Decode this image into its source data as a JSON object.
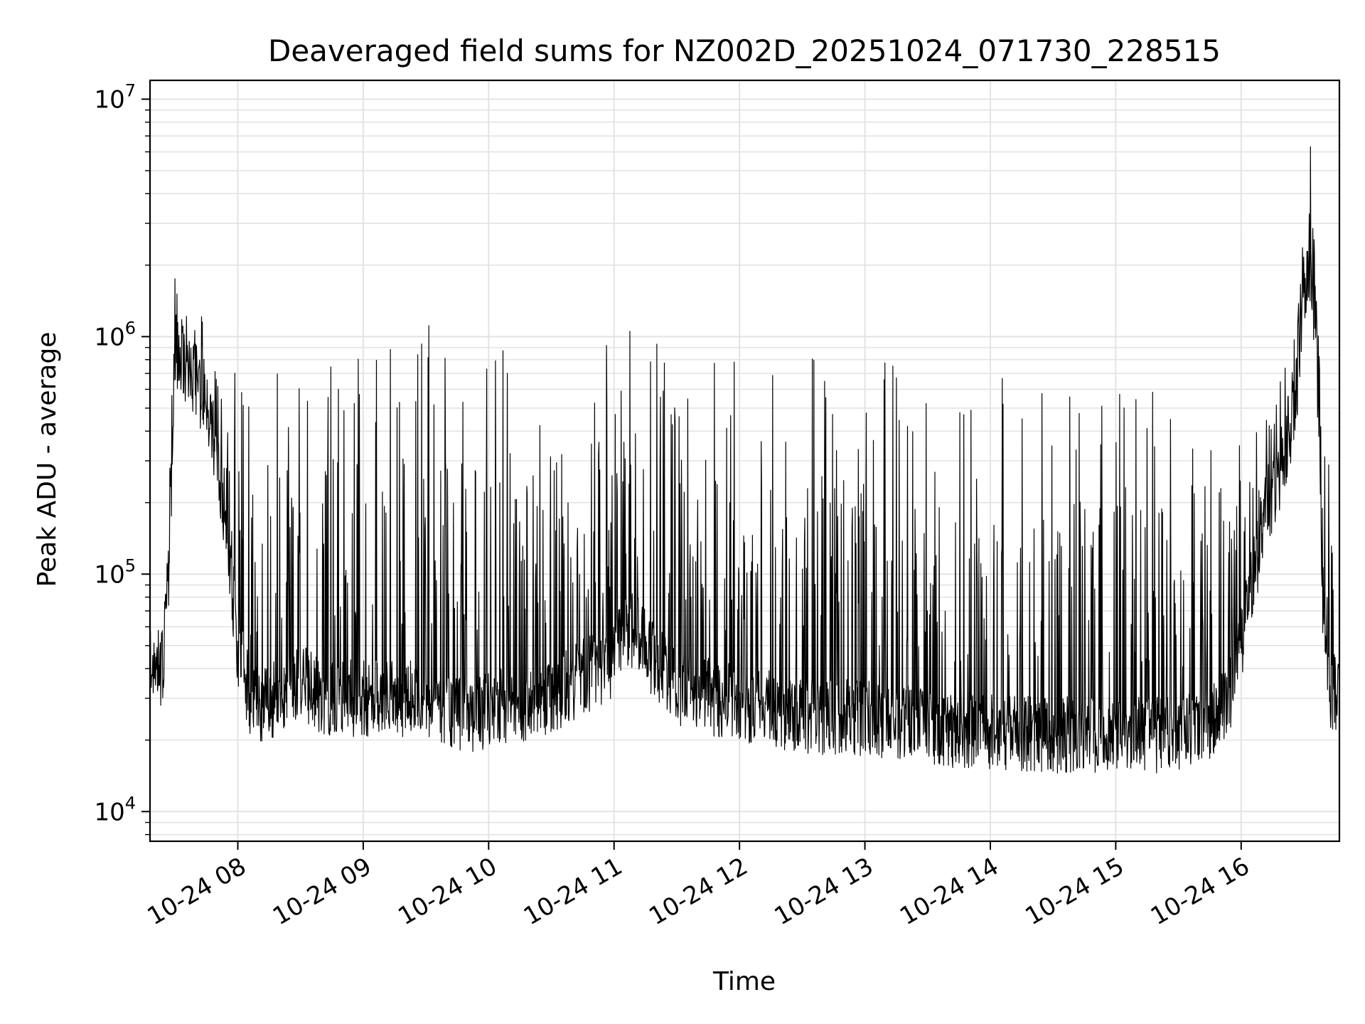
{
  "chart_data": {
    "type": "line",
    "title": "Deaveraged field sums for NZ002D_20251024_071730_228515",
    "xlabel": "Time",
    "ylabel": "Peak ADU - average",
    "yscale": "log",
    "ylim": [
      7500,
      12000000
    ],
    "xlim": [
      "2025-10-24 07:18",
      "2025-10-24 16:47"
    ],
    "grid": true,
    "line_color": "#000000",
    "y_ticks": [
      {
        "base": "10",
        "exp": "4",
        "value": 10000
      },
      {
        "base": "10",
        "exp": "5",
        "value": 100000
      },
      {
        "base": "10",
        "exp": "6",
        "value": 1000000
      },
      {
        "base": "10",
        "exp": "7",
        "value": 10000000
      }
    ],
    "x_ticks": [
      {
        "label": "10-24 08",
        "time": "2025-10-24 08:00"
      },
      {
        "label": "10-24 09",
        "time": "2025-10-24 09:00"
      },
      {
        "label": "10-24 10",
        "time": "2025-10-24 10:00"
      },
      {
        "label": "10-24 11",
        "time": "2025-10-24 11:00"
      },
      {
        "label": "10-24 12",
        "time": "2025-10-24 12:00"
      },
      {
        "label": "10-24 13",
        "time": "2025-10-24 13:00"
      },
      {
        "label": "10-24 14",
        "time": "2025-10-24 14:00"
      },
      {
        "label": "10-24 15",
        "time": "2025-10-24 15:00"
      },
      {
        "label": "10-24 16",
        "time": "2025-10-24 16:00"
      }
    ],
    "series": [
      {
        "x": [
          "2025-10-24 07:18",
          "2025-10-24 07:24",
          "2025-10-24 07:27",
          "2025-10-24 07:30",
          "2025-10-24 07:36",
          "2025-10-24 07:42",
          "2025-10-24 07:48",
          "2025-10-24 07:54",
          "2025-10-24 08:00",
          "2025-10-24 08:06",
          "2025-10-24 08:12",
          "2025-10-24 08:18",
          "2025-10-24 08:24",
          "2025-10-24 08:30",
          "2025-10-24 08:36",
          "2025-10-24 08:42",
          "2025-10-24 08:48",
          "2025-10-24 08:54",
          "2025-10-24 09:00",
          "2025-10-24 09:06",
          "2025-10-24 09:12",
          "2025-10-24 09:18",
          "2025-10-24 09:24",
          "2025-10-24 09:30",
          "2025-10-24 09:36",
          "2025-10-24 09:42",
          "2025-10-24 09:48",
          "2025-10-24 09:54",
          "2025-10-24 10:00",
          "2025-10-24 10:06",
          "2025-10-24 10:12",
          "2025-10-24 10:18",
          "2025-10-24 10:24",
          "2025-10-24 10:30",
          "2025-10-24 10:36",
          "2025-10-24 10:42",
          "2025-10-24 10:48",
          "2025-10-24 10:54",
          "2025-10-24 11:00",
          "2025-10-24 11:06",
          "2025-10-24 11:12",
          "2025-10-24 11:18",
          "2025-10-24 11:24",
          "2025-10-24 11:30",
          "2025-10-24 11:36",
          "2025-10-24 11:42",
          "2025-10-24 11:48",
          "2025-10-24 11:54",
          "2025-10-24 12:00",
          "2025-10-24 12:06",
          "2025-10-24 12:12",
          "2025-10-24 12:18",
          "2025-10-24 12:24",
          "2025-10-24 12:30",
          "2025-10-24 12:36",
          "2025-10-24 12:42",
          "2025-10-24 12:48",
          "2025-10-24 12:54",
          "2025-10-24 13:00",
          "2025-10-24 13:06",
          "2025-10-24 13:12",
          "2025-10-24 13:18",
          "2025-10-24 13:24",
          "2025-10-24 13:30",
          "2025-10-24 13:36",
          "2025-10-24 13:42",
          "2025-10-24 13:48",
          "2025-10-24 13:54",
          "2025-10-24 14:00",
          "2025-10-24 14:06",
          "2025-10-24 14:12",
          "2025-10-24 14:18",
          "2025-10-24 14:24",
          "2025-10-24 14:30",
          "2025-10-24 14:36",
          "2025-10-24 14:42",
          "2025-10-24 14:48",
          "2025-10-24 14:54",
          "2025-10-24 15:00",
          "2025-10-24 15:06",
          "2025-10-24 15:12",
          "2025-10-24 15:18",
          "2025-10-24 15:24",
          "2025-10-24 15:30",
          "2025-10-24 15:36",
          "2025-10-24 15:42",
          "2025-10-24 15:48",
          "2025-10-24 15:54",
          "2025-10-24 16:00",
          "2025-10-24 16:06",
          "2025-10-24 16:12",
          "2025-10-24 16:18",
          "2025-10-24 16:24",
          "2025-10-24 16:27",
          "2025-10-24 16:30",
          "2025-10-24 16:33",
          "2025-10-24 16:36",
          "2025-10-24 16:39",
          "2025-10-24 16:42",
          "2025-10-24 16:47"
        ],
        "base": [
          40000,
          40000,
          100000,
          900000,
          750000,
          600000,
          400000,
          180000,
          50000,
          30000,
          28000,
          30000,
          33000,
          35000,
          33000,
          30000,
          30000,
          30000,
          30000,
          30000,
          30000,
          30000,
          30000,
          30000,
          28000,
          27000,
          26000,
          26000,
          27000,
          28000,
          28000,
          29000,
          30000,
          31000,
          33000,
          35000,
          38000,
          40000,
          45000,
          60000,
          55000,
          45000,
          38000,
          34000,
          32000,
          31000,
          30000,
          30000,
          29000,
          28000,
          27000,
          27000,
          26000,
          26000,
          25000,
          25000,
          25000,
          25000,
          25000,
          24000,
          24000,
          24000,
          23000,
          23000,
          23000,
          22000,
          22000,
          22000,
          22000,
          22000,
          21000,
          21000,
          21000,
          21000,
          21000,
          21000,
          21000,
          21000,
          21000,
          21000,
          21000,
          21000,
          21000,
          21000,
          22000,
          23000,
          25000,
          30000,
          50000,
          100000,
          180000,
          250000,
          400000,
          600000,
          1500000,
          2000000,
          1000000,
          80000,
          32000,
          30000
        ],
        "peak": [
          70000,
          60000,
          400000,
          1800000,
          1500000,
          1300000,
          1200000,
          900000,
          700000,
          600000,
          800000,
          900000,
          900000,
          1000000,
          900000,
          800000,
          900000,
          1000000,
          1100000,
          1000000,
          900000,
          1000000,
          1000000,
          1200000,
          900000,
          900000,
          900000,
          900000,
          1000000,
          1000000,
          1000000,
          1000000,
          1000000,
          1000000,
          1100000,
          1000000,
          1000000,
          1100000,
          1000000,
          1100000,
          1000000,
          1000000,
          900000,
          900000,
          1000000,
          900000,
          900000,
          800000,
          800000,
          800000,
          800000,
          700000,
          700000,
          700000,
          900000,
          800000,
          700000,
          700000,
          700000,
          700000,
          900000,
          700000,
          600000,
          600000,
          600000,
          500000,
          500000,
          500000,
          700000,
          700000,
          700000,
          800000,
          800000,
          700000,
          600000,
          600000,
          600000,
          800000,
          800000,
          700000,
          600000,
          600000,
          500000,
          500000,
          400000,
          400000,
          400000,
          400000,
          400000,
          400000,
          500000,
          700000,
          900000,
          1200000,
          3500000,
          8000000,
          3000000,
          400000,
          300000,
          40000
        ]
      }
    ]
  }
}
